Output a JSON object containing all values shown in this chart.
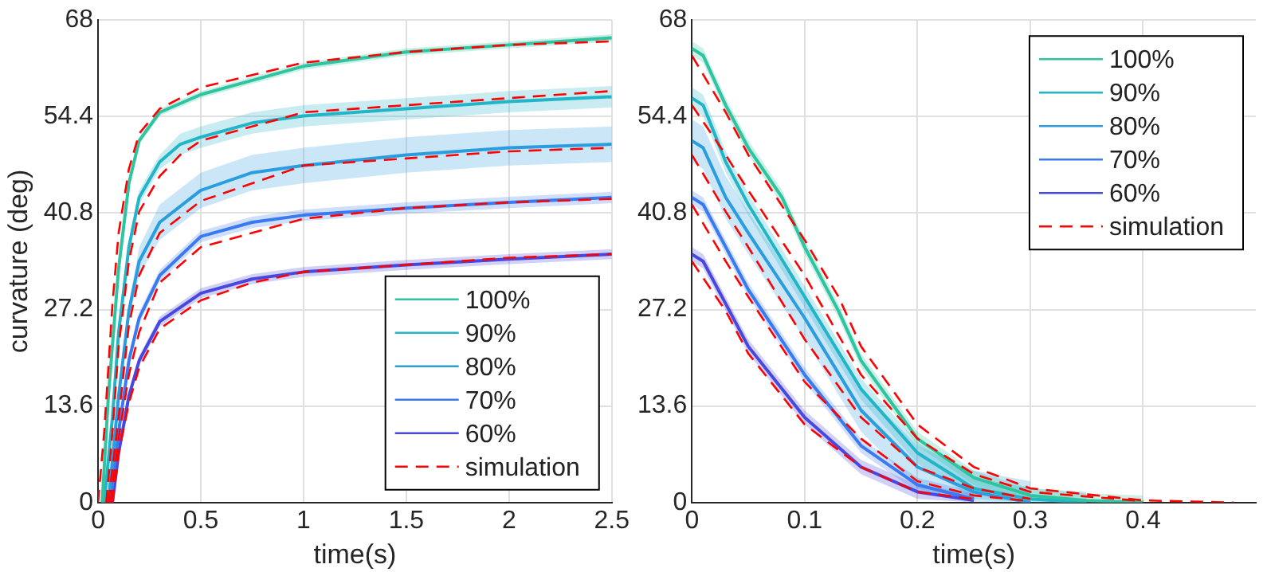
{
  "chart_data": [
    {
      "type": "line",
      "xlabel": "time(s)",
      "ylabel": "curvature (deg)",
      "xlim": [
        0,
        2.5
      ],
      "xticks": [
        0,
        0.5,
        1,
        1.5,
        2,
        2.5
      ],
      "ylim": [
        0,
        68
      ],
      "yticks": [
        0,
        13.6,
        27.2,
        40.8,
        54.4,
        68
      ],
      "grid": true,
      "legend": "bottom right",
      "marker": "none",
      "series": [
        {
          "name": "100%",
          "color": "#2ec4a0",
          "x": [
            0.02,
            0.05,
            0.1,
            0.15,
            0.2,
            0.3,
            0.5,
            0.75,
            1,
            1.5,
            2,
            2.5
          ],
          "values": [
            0,
            15,
            33,
            45,
            51,
            55,
            57.5,
            59.5,
            61.5,
            63.5,
            64.5,
            65.5
          ],
          "lower": [
            0,
            14.5,
            32.5,
            44.5,
            50.5,
            54.5,
            57,
            59,
            61,
            63,
            64,
            65
          ],
          "upper": [
            0,
            15.5,
            33.5,
            45.5,
            51.5,
            55.5,
            58,
            60,
            62,
            64,
            65,
            66
          ]
        },
        {
          "name": "90%",
          "color": "#22b5c8",
          "x": [
            0.03,
            0.07,
            0.1,
            0.15,
            0.2,
            0.3,
            0.4,
            0.5,
            0.75,
            1,
            1.5,
            2,
            2.5
          ],
          "values": [
            0,
            12,
            24,
            36,
            43,
            48,
            50.5,
            51.5,
            53.5,
            54.5,
            55.5,
            56.5,
            57.2
          ],
          "lower": [
            0,
            11,
            23,
            35,
            42,
            47,
            49,
            50,
            52,
            53,
            54,
            55,
            55.7
          ],
          "upper": [
            0,
            13,
            25,
            37,
            44,
            49,
            52,
            53,
            55,
            56,
            57,
            58,
            58.7
          ]
        },
        {
          "name": "80%",
          "color": "#2a9de0",
          "x": [
            0.05,
            0.1,
            0.15,
            0.2,
            0.3,
            0.5,
            0.75,
            1,
            1.5,
            2,
            2.5
          ],
          "values": [
            0,
            15,
            27,
            34,
            39.5,
            44,
            46.5,
            47.5,
            49,
            50,
            50.5
          ],
          "lower": [
            0,
            14,
            26,
            32,
            37,
            41.5,
            44,
            45,
            46.5,
            47.5,
            48
          ],
          "upper": [
            0,
            16,
            28,
            36,
            42,
            46.5,
            49,
            50,
            51.5,
            52.5,
            53
          ]
        },
        {
          "name": "70%",
          "color": "#3a7af0",
          "x": [
            0.06,
            0.1,
            0.15,
            0.2,
            0.3,
            0.5,
            0.75,
            1,
            1.5,
            2,
            2.5
          ],
          "values": [
            0,
            10,
            20,
            26,
            32,
            37.5,
            39.5,
            40.5,
            41.5,
            42.3,
            43
          ],
          "lower": [
            0,
            9.2,
            19.2,
            25.2,
            31.2,
            36.7,
            38.7,
            39.7,
            40.7,
            41.5,
            42.2
          ],
          "upper": [
            0,
            10.8,
            20.8,
            26.8,
            32.8,
            38.3,
            40.3,
            41.3,
            42.3,
            43.1,
            43.8
          ]
        },
        {
          "name": "60%",
          "color": "#4848e0",
          "x": [
            0.07,
            0.1,
            0.15,
            0.2,
            0.3,
            0.5,
            0.75,
            1,
            1.5,
            2,
            2.5
          ],
          "values": [
            0,
            7,
            15,
            20,
            25.5,
            29.5,
            31.5,
            32.5,
            33.5,
            34.3,
            35
          ],
          "lower": [
            0,
            6.3,
            14.3,
            19.3,
            24.8,
            28.8,
            30.8,
            31.8,
            32.8,
            33.6,
            34.3
          ],
          "upper": [
            0,
            7.7,
            15.7,
            20.7,
            26.2,
            30.2,
            32.2,
            33.2,
            34.2,
            35,
            35.7
          ]
        },
        {
          "name": "simulation",
          "color": "#ff0000",
          "line_style": "dashed",
          "x": [
            0,
            0.03,
            0.07,
            0.1,
            0.15,
            0.2,
            0.3,
            0.5,
            1,
            1.5,
            2,
            2.5
          ],
          "values": [
            0,
            10,
            28,
            38,
            47,
            52,
            55.5,
            58.5,
            62,
            63.5,
            64.5,
            65
          ]
        },
        {
          "color": "#ff0000",
          "line_style": "dashed",
          "x": [
            0.04,
            0.07,
            0.1,
            0.15,
            0.2,
            0.3,
            0.4,
            0.5,
            1,
            1.5,
            2,
            2.5
          ],
          "values": [
            0,
            10,
            22,
            34,
            41,
            46,
            49,
            51,
            55,
            56,
            57,
            58
          ]
        },
        {
          "color": "#ff0000",
          "line_style": "dashed",
          "x": [
            0.05,
            0.1,
            0.15,
            0.2,
            0.3,
            0.5,
            1,
            1.5,
            2,
            2.5
          ],
          "values": [
            0,
            12,
            25,
            32,
            38,
            42.5,
            47.5,
            48.5,
            49.5,
            50
          ]
        },
        {
          "color": "#ff0000",
          "line_style": "dashed",
          "x": [
            0.06,
            0.1,
            0.15,
            0.2,
            0.3,
            0.5,
            1,
            1.5,
            2,
            2.5
          ],
          "values": [
            0,
            9,
            18,
            24,
            31,
            36,
            40,
            41.5,
            42.3,
            42.8
          ]
        },
        {
          "color": "#ff0000",
          "line_style": "dashed",
          "x": [
            0.07,
            0.1,
            0.15,
            0.2,
            0.3,
            0.5,
            0.75,
            1,
            1.5,
            2,
            2.5
          ],
          "values": [
            0,
            7,
            14,
            19,
            24.5,
            28.5,
            31,
            32.5,
            33.5,
            34.5,
            35
          ]
        }
      ]
    },
    {
      "type": "line",
      "xlabel": "time(s)",
      "xlim": [
        0,
        0.5
      ],
      "xticks": [
        0,
        0.1,
        0.2,
        0.3,
        0.4
      ],
      "ylim": [
        0,
        68
      ],
      "yticks": [
        0,
        13.6,
        27.2,
        40.8,
        54.4,
        68
      ],
      "grid": true,
      "legend": "top right",
      "marker": "none",
      "series": [
        {
          "name": "100%",
          "color": "#2ec4a0",
          "x": [
            0,
            0.01,
            0.03,
            0.05,
            0.08,
            0.1,
            0.13,
            0.15,
            0.2,
            0.25,
            0.3,
            0.35,
            0.4
          ],
          "values": [
            64,
            63,
            56,
            50,
            43,
            36,
            27,
            20,
            9,
            3.5,
            1,
            0.3,
            0
          ],
          "lower": [
            63,
            62,
            55,
            49,
            42,
            35,
            26,
            19,
            8,
            2.5,
            0,
            0,
            0
          ],
          "upper": [
            65,
            64,
            57,
            51,
            44,
            37,
            28,
            21,
            10,
            4.5,
            2,
            1.3,
            1
          ]
        },
        {
          "name": "90%",
          "color": "#22b5c8",
          "x": [
            0,
            0.01,
            0.03,
            0.05,
            0.1,
            0.15,
            0.2,
            0.25,
            0.3,
            0.35
          ],
          "values": [
            57,
            56,
            48,
            42,
            29,
            16,
            7,
            2,
            0.5,
            0
          ],
          "lower": [
            55.5,
            54.5,
            46.5,
            40.5,
            27.5,
            14.5,
            5.5,
            0.5,
            0,
            0
          ],
          "upper": [
            58.5,
            57.5,
            49.5,
            43.5,
            30.5,
            17.5,
            8.5,
            3.5,
            2,
            1.5
          ]
        },
        {
          "name": "80%",
          "color": "#2a9de0",
          "x": [
            0,
            0.01,
            0.03,
            0.05,
            0.1,
            0.15,
            0.2,
            0.25,
            0.3
          ],
          "values": [
            51,
            50,
            43,
            38,
            26,
            13,
            5,
            1.5,
            0
          ],
          "lower": [
            48,
            47,
            40,
            35,
            23,
            10,
            2,
            0,
            0
          ],
          "upper": [
            54,
            53,
            46,
            41,
            29,
            16,
            8,
            4.5,
            3
          ]
        },
        {
          "name": "70%",
          "color": "#3a7af0",
          "x": [
            0,
            0.01,
            0.03,
            0.05,
            0.1,
            0.15,
            0.2,
            0.25
          ],
          "values": [
            43,
            42,
            36,
            30,
            18,
            8,
            2.5,
            0.5
          ],
          "lower": [
            42,
            41,
            35,
            29,
            17,
            7,
            1.5,
            0
          ],
          "upper": [
            44,
            43,
            37,
            31,
            19,
            9,
            3.5,
            1.5
          ]
        },
        {
          "name": "60%",
          "color": "#4848e0",
          "x": [
            0,
            0.01,
            0.03,
            0.05,
            0.1,
            0.15,
            0.2,
            0.25
          ],
          "values": [
            35,
            34,
            28,
            22,
            12,
            5,
            1.5,
            0.3
          ],
          "lower": [
            34,
            33,
            27,
            21,
            11,
            4,
            0.5,
            0
          ],
          "upper": [
            36,
            35,
            29,
            23,
            13,
            6,
            2.5,
            1.3
          ]
        },
        {
          "name": "simulation",
          "color": "#ff0000",
          "line_style": "dashed",
          "x": [
            0,
            0.03,
            0.05,
            0.1,
            0.13,
            0.15,
            0.2,
            0.25,
            0.3,
            0.4,
            0.48
          ],
          "values": [
            63,
            55,
            49,
            37,
            29,
            22,
            11,
            5,
            2,
            0.3,
            0
          ]
        },
        {
          "color": "#ff0000",
          "line_style": "dashed",
          "x": [
            0,
            0.03,
            0.05,
            0.1,
            0.15,
            0.2,
            0.25,
            0.3,
            0.4
          ],
          "values": [
            56,
            49,
            44,
            32,
            18,
            9,
            4,
            1.5,
            0.2
          ]
        },
        {
          "color": "#ff0000",
          "line_style": "dashed",
          "x": [
            0,
            0.03,
            0.05,
            0.1,
            0.15,
            0.2,
            0.25,
            0.3
          ],
          "values": [
            49,
            41,
            36,
            23,
            12,
            5,
            2,
            0.5
          ]
        },
        {
          "color": "#ff0000",
          "line_style": "dashed",
          "x": [
            0,
            0.03,
            0.05,
            0.1,
            0.15,
            0.2,
            0.25,
            0.3
          ],
          "values": [
            42,
            34,
            29,
            17,
            9,
            3,
            1,
            0.2
          ]
        },
        {
          "color": "#ff0000",
          "line_style": "dashed",
          "x": [
            0,
            0.03,
            0.05,
            0.1,
            0.15,
            0.2,
            0.25
          ],
          "values": [
            34,
            27,
            21,
            11,
            5,
            1.5,
            0.5
          ]
        }
      ]
    }
  ]
}
